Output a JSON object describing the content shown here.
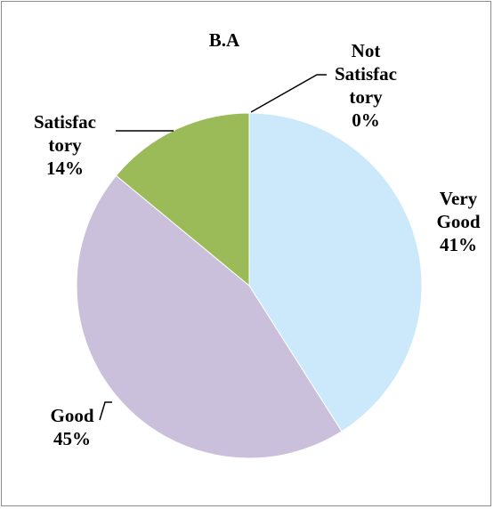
{
  "chart_data": {
    "type": "pie",
    "title": "B.A",
    "slices": [
      {
        "category": "Very Good",
        "value": 41,
        "label": "41%",
        "color": "#cce9fb",
        "label_lines": [
          "Very",
          "Good",
          "41%"
        ]
      },
      {
        "category": "Good",
        "value": 45,
        "label": "45%",
        "color": "#cbc0dc",
        "label_lines": [
          "Good",
          "45%"
        ]
      },
      {
        "category": "Satisfactory",
        "value": 14,
        "label": "14%",
        "color": "#9bbb59",
        "label_lines": [
          "Satisfac",
          "tory",
          "14%"
        ]
      },
      {
        "category": "Not Satisfactory",
        "value": 0,
        "label": "0%",
        "color": "#c0504d",
        "label_lines": [
          "Not",
          "Satisfac",
          "tory",
          "0%"
        ]
      }
    ],
    "legend": "none",
    "start_angle": "12 o'clock",
    "direction": "clockwise"
  }
}
